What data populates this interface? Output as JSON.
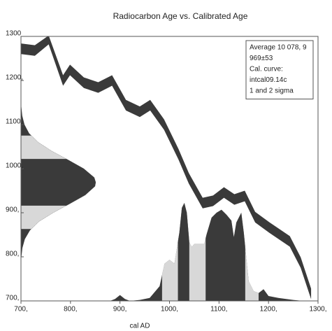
{
  "chart_data": {
    "type": "calibration",
    "title": "Radiocarbon Age vs. Calibrated Age",
    "xlabel": "cal AD",
    "xlim": [
      700,
      1300
    ],
    "ylim": [
      700,
      1300
    ],
    "xticks": [
      {
        "value": 700,
        "label": "700,"
      },
      {
        "value": 800,
        "label": "800,"
      },
      {
        "value": 900,
        "label": "900,"
      },
      {
        "value": 1000,
        "label": "1000,"
      },
      {
        "value": 1100,
        "label": "1100,"
      },
      {
        "value": 1200,
        "label": "1200,"
      },
      {
        "value": 1300,
        "label": "1300,"
      }
    ],
    "yticks": [
      {
        "value": 700,
        "label": "700,"
      },
      {
        "value": 800,
        "label": "800,"
      },
      {
        "value": 900,
        "label": "900,"
      },
      {
        "value": 1000,
        "label": "1000,"
      },
      {
        "value": 1100,
        "label": "1100,"
      },
      {
        "value": 1200,
        "label": "1200,"
      },
      1300
    ],
    "legend": [
      "Average 10 078, 9",
      "969±53",
      "Cal. curve:",
      "intcal09.14c",
      "1 and 2 sigma"
    ],
    "dark_color": "#3a3a3a",
    "light_color": "#d8d8d8",
    "curve": {
      "x": [
        700,
        728,
        756,
        785,
        799,
        827,
        856,
        884,
        912,
        940,
        961,
        989,
        1018,
        1039,
        1067,
        1088,
        1110,
        1131,
        1152,
        1173,
        1201,
        1243,
        1265,
        1286
      ],
      "upper": [
        1284,
        1280,
        1302,
        1212,
        1236,
        1207,
        1196,
        1212,
        1156,
        1141,
        1156,
        1112,
        1045,
        990,
        934,
        939,
        958,
        942,
        950,
        902,
        879,
        847,
        799,
        728
      ],
      "lower": [
        1260,
        1256,
        1282,
        1188,
        1212,
        1183,
        1172,
        1188,
        1132,
        1117,
        1132,
        1088,
        1021,
        966,
        910,
        915,
        934,
        918,
        926,
        878,
        855,
        823,
        775,
        704
      ]
    },
    "radiocarbon": {
      "y": [
        800,
        820,
        840,
        860,
        880,
        900,
        920,
        940,
        960,
        969,
        980,
        1000,
        1020,
        1040,
        1060,
        1080,
        1100,
        1120,
        1140
      ],
      "density": [
        0.006,
        0.019,
        0.052,
        0.12,
        0.24,
        0.43,
        0.65,
        0.86,
        0.99,
        1,
        0.98,
        0.84,
        0.63,
        0.41,
        0.23,
        0.11,
        0.047,
        0.017,
        0.005
      ],
      "sigma1": [
        916,
        1022
      ],
      "sigma2": [
        863,
        1075
      ]
    },
    "calibrated": {
      "x": [
        880,
        890,
        900,
        910,
        920,
        940,
        960,
        980,
        990,
        1000,
        1010,
        1020,
        1025,
        1030,
        1035,
        1040,
        1045,
        1050,
        1060,
        1070,
        1075,
        1085,
        1095,
        1105,
        1115,
        1125,
        1130,
        1135,
        1145,
        1150,
        1160,
        1170,
        1180,
        1190,
        1200,
        1220,
        1250,
        1270
      ],
      "density": [
        0,
        0.02,
        0.06,
        0.02,
        0,
        0.01,
        0.03,
        0.15,
        0.38,
        0.42,
        0.38,
        0.7,
        0.95,
        1,
        0.9,
        0.6,
        0.55,
        0.58,
        0.58,
        0.58,
        0.68,
        0.85,
        0.9,
        0.93,
        0.88,
        0.82,
        0.65,
        0.8,
        0.9,
        0.7,
        0.2,
        0.1,
        0.08,
        0.12,
        0.05,
        0.03,
        0.01,
        0
      ],
      "sigma1": [
        [
          1017,
          1040
        ],
        [
          1073,
          1153
        ]
      ],
      "sigma2": [
        985,
        1180
      ]
    }
  }
}
